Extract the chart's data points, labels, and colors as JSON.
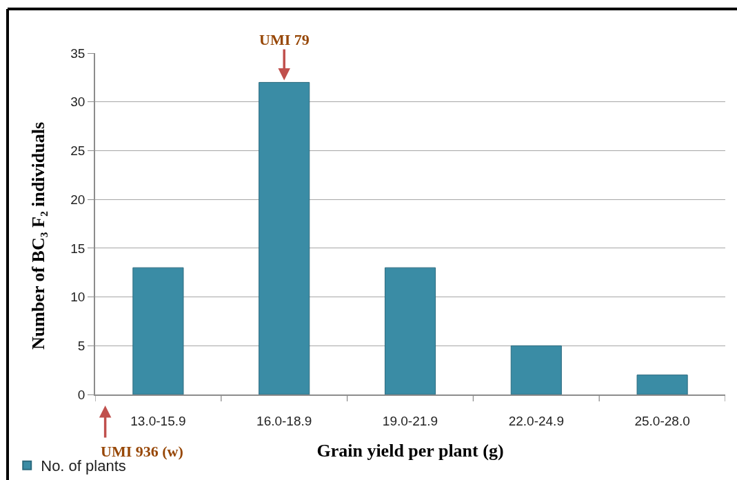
{
  "chart_data": {
    "type": "bar",
    "xlabel": "Grain yield per plant (g)",
    "ylabel": "Number of BC₃ F₂ individuals",
    "categories": [
      "13.0-15.9",
      "16.0-18.9",
      "19.0-21.9",
      "22.0-24.9",
      "25.0-28.0"
    ],
    "series": [
      {
        "name": "No. of plants",
        "color": "#3a8ca5",
        "values": [
          13,
          32,
          13,
          5,
          2
        ]
      }
    ],
    "ylim": [
      0,
      35
    ],
    "yticks": [
      0,
      5,
      10,
      15,
      20,
      25,
      30,
      35
    ],
    "grid": "y",
    "legend": "bottom left",
    "annotations": [
      {
        "text": "UMI 79",
        "x": "16.0-18.9",
        "y": 32
      },
      "UMI 936 (w)"
    ]
  }
}
